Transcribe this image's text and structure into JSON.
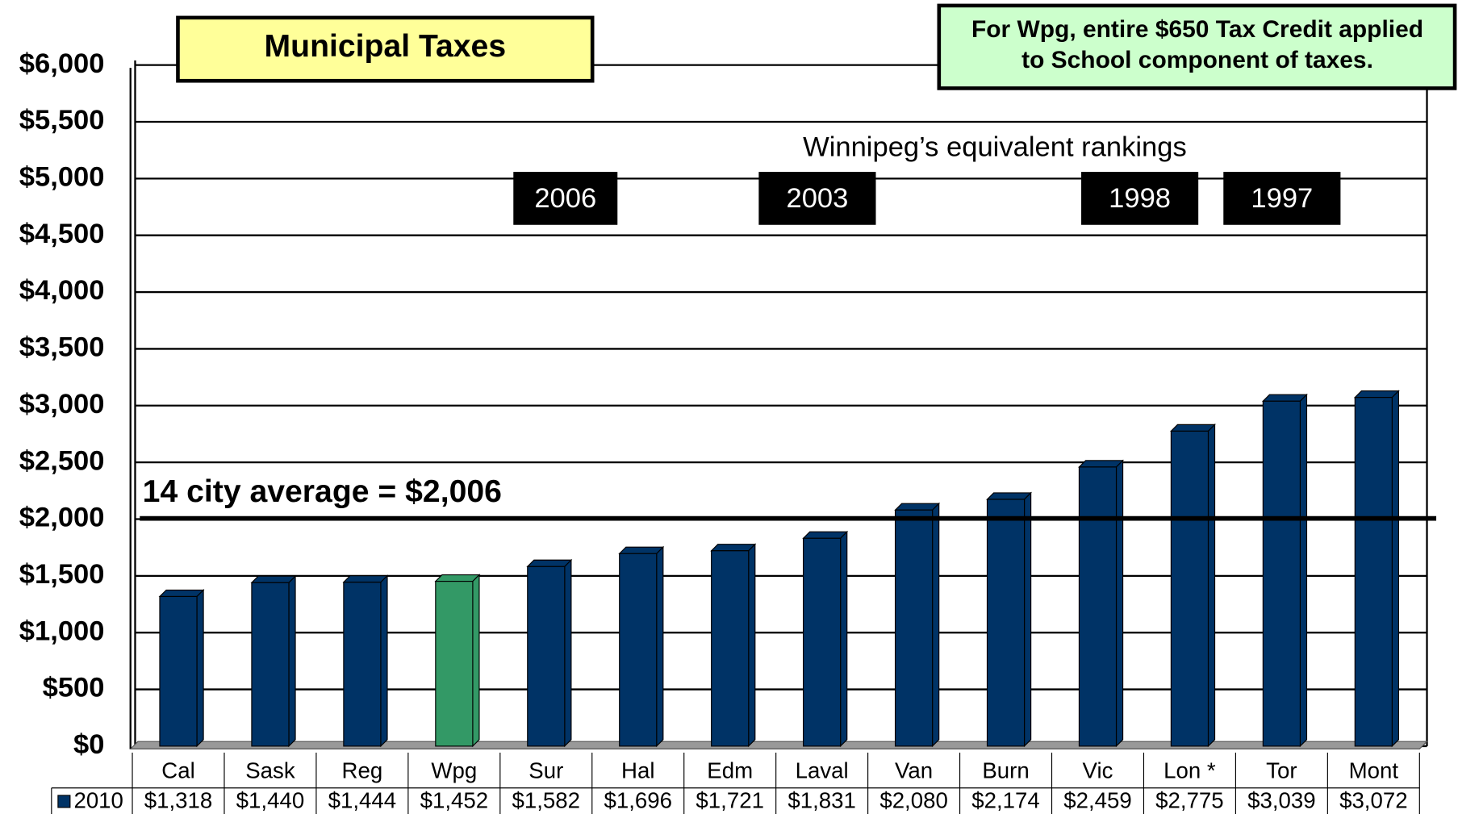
{
  "chart_data": {
    "type": "bar",
    "title": "Municipal Taxes",
    "note": [
      "For Wpg, entire $650 Tax Credit applied",
      "to School component of taxes."
    ],
    "rankings_title": "Winnipeg’s equivalent rankings",
    "rankings": [
      "2006",
      "2003",
      "1998",
      "1997"
    ],
    "categories": [
      "Cal",
      "Sask",
      "Reg",
      "Wpg",
      "Sur",
      "Hal",
      "Edm",
      "Laval",
      "Van",
      "Burn",
      "Vic",
      "Lon *",
      "Tor",
      "Mont"
    ],
    "series": [
      {
        "name": "2010",
        "color": "#003366",
        "colors": [
          "#003366",
          "#003366",
          "#003366",
          "#339966",
          "#003366",
          "#003366",
          "#003366",
          "#003366",
          "#003366",
          "#003366",
          "#003366",
          "#003366",
          "#003366",
          "#003366"
        ],
        "values": [
          1318,
          1440,
          1444,
          1452,
          1582,
          1696,
          1721,
          1831,
          2080,
          2174,
          2459,
          2775,
          3039,
          3072
        ],
        "value_labels": [
          "$1,318",
          "$1,440",
          "$1,444",
          "$1,452",
          "$1,582",
          "$1,696",
          "$1,721",
          "$1,831",
          "$2,080",
          "$2,174",
          "$2,459",
          "$2,775",
          "$3,039",
          "$3,072"
        ]
      }
    ],
    "average": {
      "label": "14 city average = $2,006",
      "value": 2006
    },
    "ylim": [
      0,
      6000
    ],
    "yticks": [
      {
        "value": 0,
        "label": "$0"
      },
      {
        "value": 500,
        "label": "$500"
      },
      {
        "value": 1000,
        "label": "$1,000"
      },
      {
        "value": 1500,
        "label": "$1,500"
      },
      {
        "value": 2000,
        "label": "$2,000"
      },
      {
        "value": 2500,
        "label": "$2,500"
      },
      {
        "value": 3000,
        "label": "$3,000"
      },
      {
        "value": 3500,
        "label": "$3,500"
      },
      {
        "value": 4000,
        "label": "$4,000"
      },
      {
        "value": 4500,
        "label": "$4,500"
      },
      {
        "value": 5000,
        "label": "$5,000"
      },
      {
        "value": 5500,
        "label": "$5,500"
      },
      {
        "value": 6000,
        "label": "$6,000"
      }
    ],
    "grid": true
  }
}
